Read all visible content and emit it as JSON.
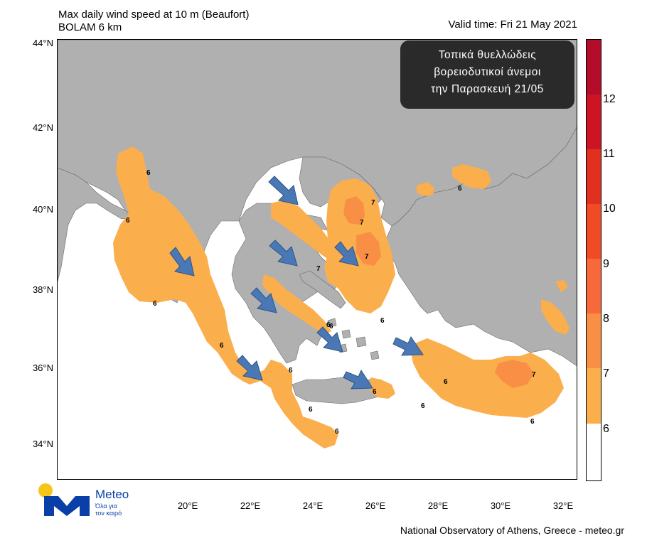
{
  "header": {
    "title_line1": "Max daily wind speed at 10 m (Beaufort)",
    "title_line2": "BOLAM 6 km",
    "valid_time": "Valid time: Fri 21 May 2021"
  },
  "callout": {
    "line1": "Τοπικά θυελλώδεις",
    "line2": "βορειοδυτικοί άνεμοι",
    "line3": "την Παρασκευή 21/05"
  },
  "latitude_labels": [
    "44°N",
    "42°N",
    "40°N",
    "38°N",
    "36°N",
    "34°N"
  ],
  "longitude_labels": [
    "20°E",
    "22°E",
    "24°E",
    "26°E",
    "28°E",
    "30°E",
    "32°E"
  ],
  "colorbar": {
    "labels": [
      "12",
      "11",
      "10",
      "9",
      "8",
      "7",
      "6"
    ],
    "colors": [
      "#b30d2b",
      "#cc1422",
      "#e0301f",
      "#f04a26",
      "#f7683a",
      "#f98f45",
      "#fbae4c",
      "#ffffff"
    ]
  },
  "map_colors": {
    "land": "#b0b0b0",
    "sea": "#ffffff",
    "beaufort6": "#fbae4c",
    "beaufort7": "#f98f45",
    "arrow": "#4a78b5"
  },
  "contour_labels": [
    "6",
    "6",
    "6",
    "6",
    "6",
    "6",
    "6",
    "6",
    "6",
    "6",
    "6",
    "6",
    "6",
    "6",
    "6",
    "7",
    "7",
    "7",
    "7",
    "7"
  ],
  "logo": {
    "name": "Meteo",
    "tagline_1": "Όλα για",
    "tagline_2": "τον καιρό"
  },
  "footer": "National Observatory of Athens, Greece - meteo.gr"
}
